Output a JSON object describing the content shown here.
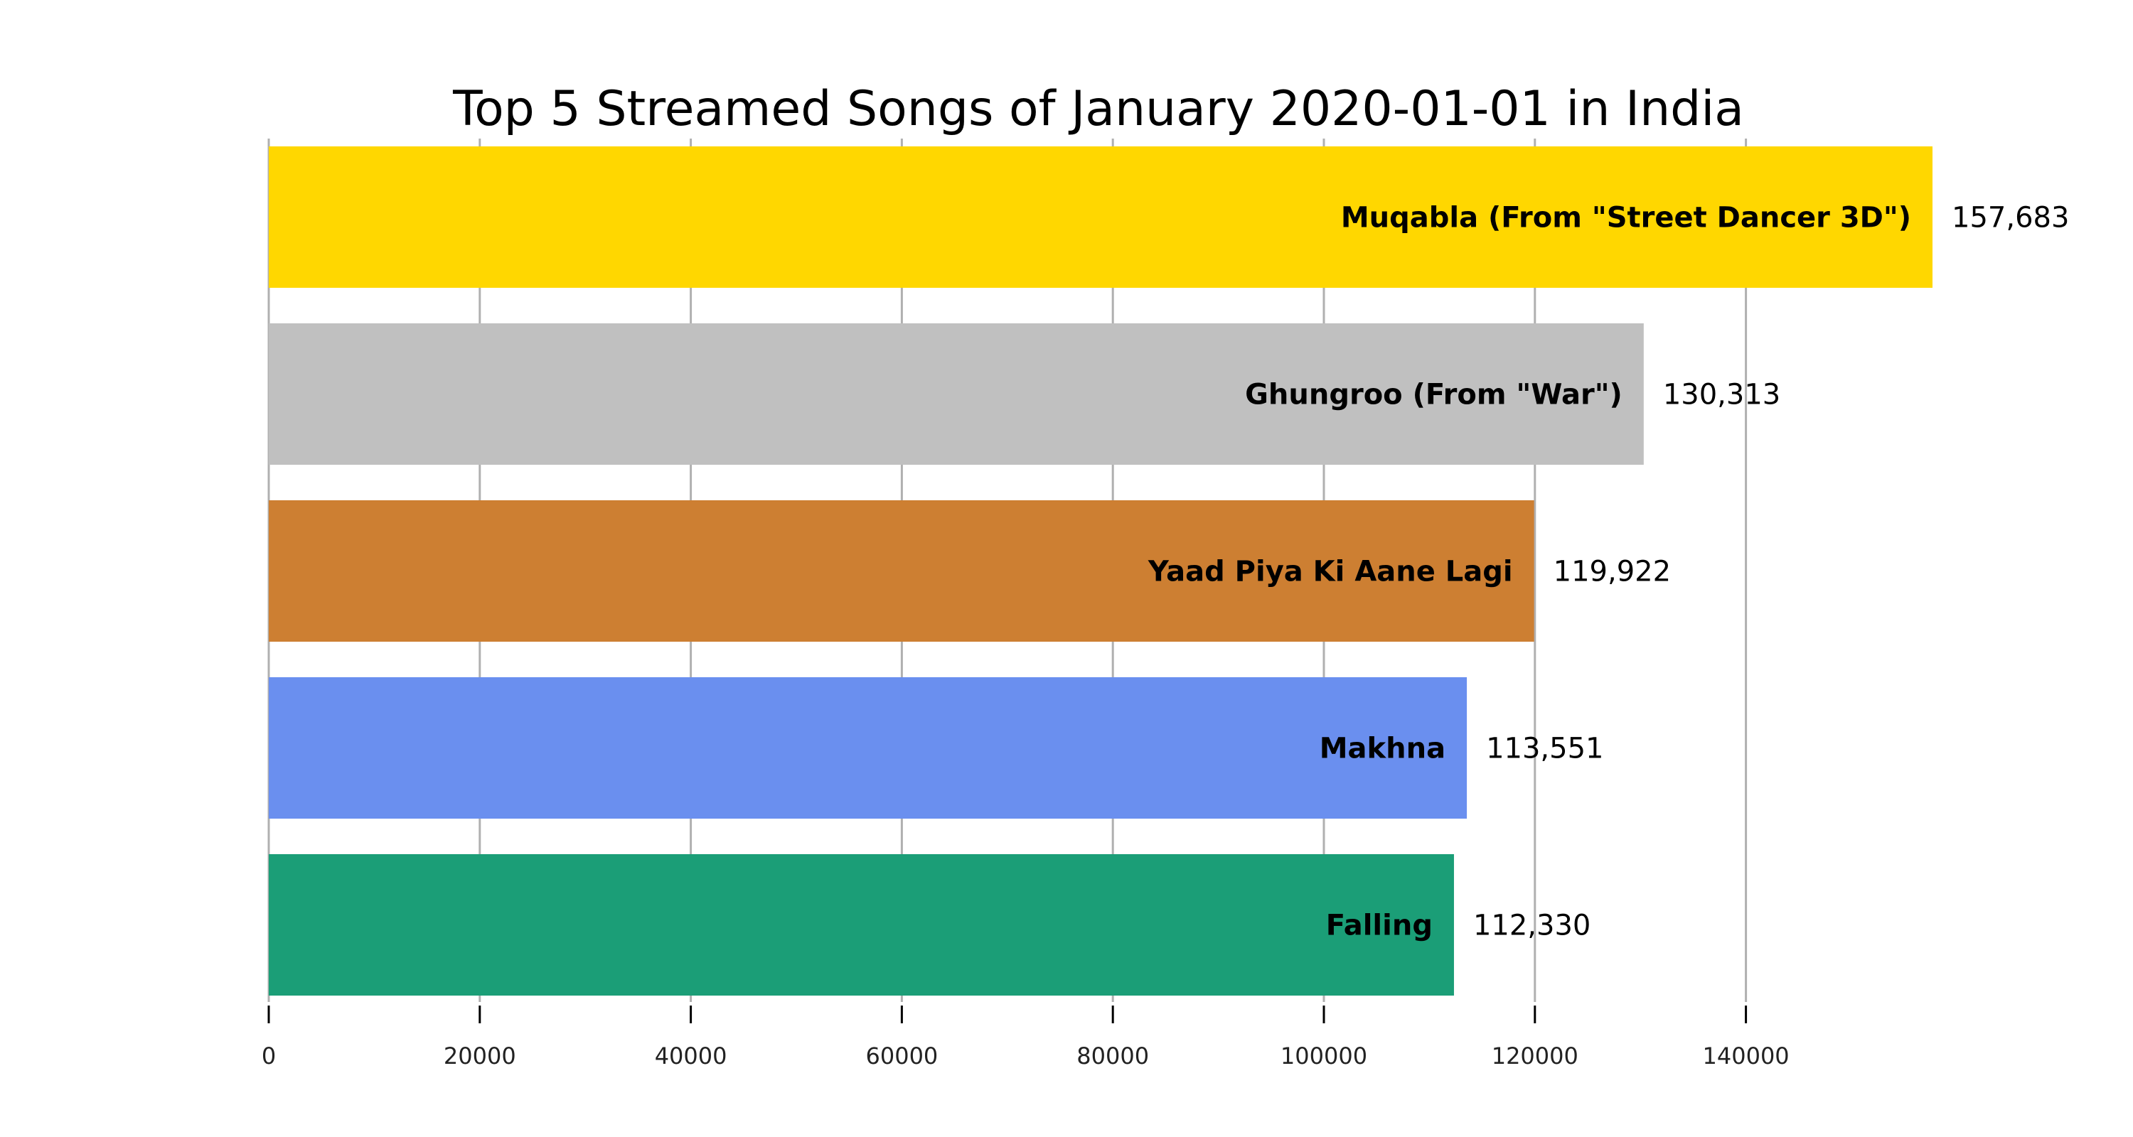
{
  "chart_data": {
    "type": "bar",
    "orientation": "horizontal",
    "title": "Top 5 Streamed Songs of January 2020-01-01 in India",
    "xlabel": "",
    "ylabel": "",
    "xlim": [
      0,
      157683
    ],
    "xticks": [
      0,
      20000,
      40000,
      60000,
      80000,
      100000,
      120000,
      140000
    ],
    "grid": true,
    "legend": "none",
    "categories": [
      "Muqabla (From \"Street Dancer 3D\")",
      "Ghungroo (From \"War\")",
      "Yaad Piya Ki Aane Lagi",
      "Makhna",
      "Falling"
    ],
    "values": [
      157683,
      130313,
      119922,
      113551,
      112330
    ],
    "value_labels": [
      "157,683",
      "130,313",
      "119,922",
      "113,551",
      "112,330"
    ],
    "colors": [
      "#FFD700",
      "#C0C0C0",
      "#CD7F32",
      "#6A8FEF",
      "#1B9E77"
    ]
  }
}
